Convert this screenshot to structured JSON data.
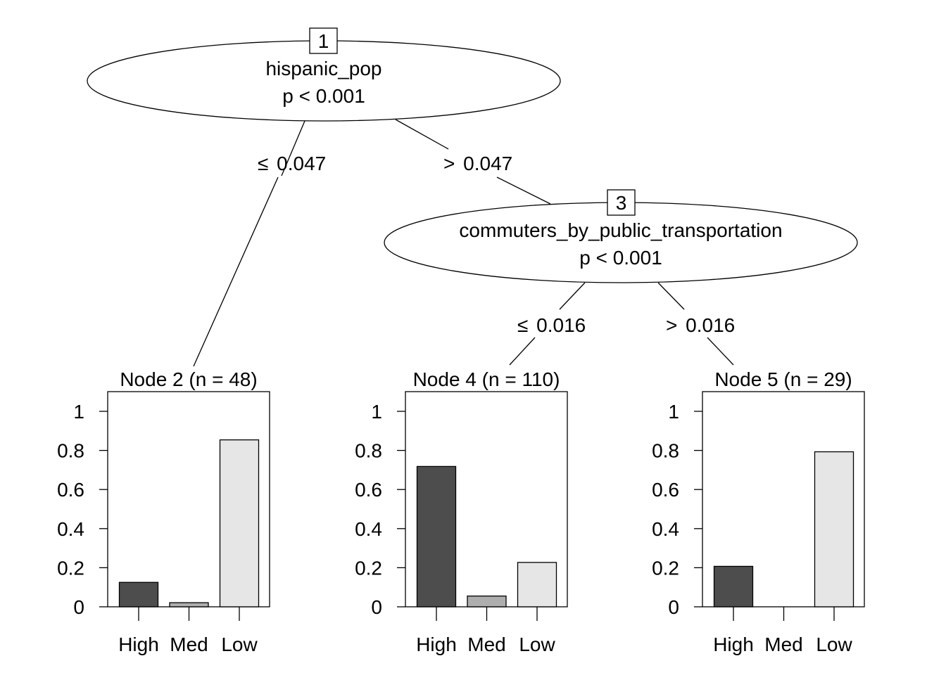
{
  "chart_data": {
    "type": "bar",
    "diagram": "conditional-inference-tree",
    "inner_nodes": [
      {
        "id": "1",
        "variable": "hispanic_pop",
        "pvalue": "p < 0.001"
      },
      {
        "id": "3",
        "variable": "commuters_by_public_transportation",
        "pvalue": "p < 0.001"
      }
    ],
    "edges": [
      {
        "symbol": "≤",
        "value": "0.047"
      },
      {
        "symbol": ">",
        "value": "0.047"
      },
      {
        "symbol": "≤",
        "value": "0.016"
      },
      {
        "symbol": ">",
        "value": "0.016"
      }
    ],
    "categories": [
      "High",
      "Med",
      "Low"
    ],
    "colors": [
      "#4d4d4d",
      "#aeaeae",
      "#e6e6e6"
    ],
    "ylim": [
      0,
      1
    ],
    "yticks": [
      "0",
      "0.2",
      "0.4",
      "0.6",
      "0.8",
      "1"
    ],
    "panels": [
      {
        "title": "Node 2 (n = 48)",
        "values": [
          0.125,
          0.021,
          0.854
        ]
      },
      {
        "title": "Node 4 (n = 110)",
        "values": [
          0.718,
          0.055,
          0.227
        ]
      },
      {
        "title": "Node 5 (n = 29)",
        "values": [
          0.207,
          0.0,
          0.793
        ]
      }
    ]
  }
}
